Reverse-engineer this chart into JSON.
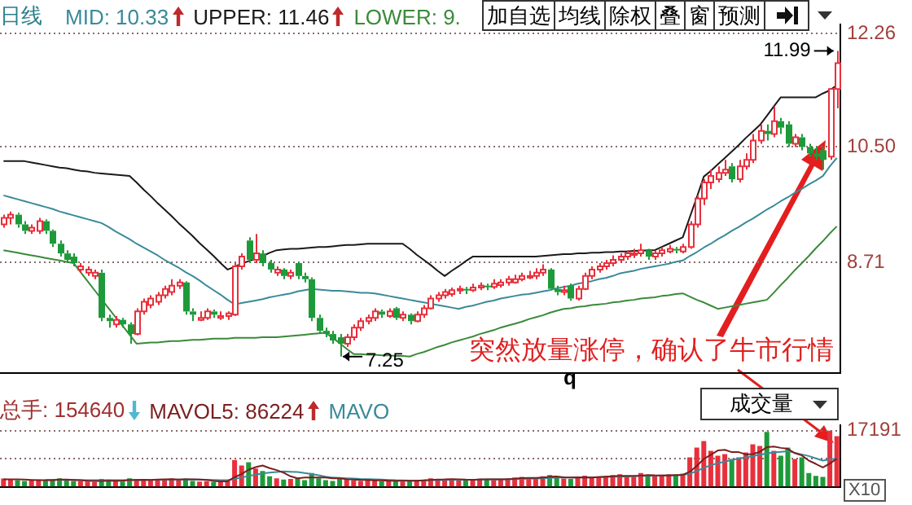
{
  "chart_data": [
    {
      "type": "candlestick",
      "title": "日线",
      "categories": [
        null,
        null,
        null,
        null,
        null,
        null,
        null,
        null,
        null,
        null,
        null,
        null,
        null,
        null,
        null,
        null,
        null,
        null,
        null,
        null,
        null,
        null,
        null,
        null,
        null,
        null,
        null,
        null,
        null,
        null,
        null,
        null,
        null,
        null,
        null,
        null,
        null,
        null,
        null,
        null,
        null,
        null,
        null,
        null,
        null,
        null,
        null,
        null,
        null,
        null,
        null,
        null,
        null,
        null,
        null,
        null,
        null,
        null,
        null,
        null,
        null,
        null,
        null,
        null,
        null,
        null,
        null,
        null,
        null,
        null,
        null,
        null,
        null,
        null,
        null,
        null,
        null,
        null,
        null,
        null,
        null,
        null,
        null,
        null,
        null,
        null,
        null,
        null,
        null,
        null,
        null,
        null,
        null,
        null,
        null,
        null,
        null,
        null,
        null,
        null,
        null,
        null,
        null,
        null,
        null,
        null,
        null,
        null,
        null,
        null,
        null,
        null,
        null,
        null,
        null,
        null,
        null,
        null,
        null,
        null
      ],
      "ohlc": [
        [
          9.3,
          9.45,
          9.25,
          9.4
        ],
        [
          9.4,
          9.5,
          9.3,
          9.45
        ],
        [
          9.45,
          9.48,
          9.25,
          9.3
        ],
        [
          9.3,
          9.35,
          9.15,
          9.2
        ],
        [
          9.2,
          9.3,
          9.15,
          9.25
        ],
        [
          9.2,
          9.4,
          9.15,
          9.35
        ],
        [
          9.35,
          9.38,
          9.15,
          9.2
        ],
        [
          9.2,
          9.22,
          8.95,
          9.0
        ],
        [
          9.0,
          9.05,
          8.8,
          8.85
        ],
        [
          8.85,
          8.9,
          8.7,
          8.75
        ],
        [
          8.8,
          8.85,
          8.65,
          8.7
        ],
        [
          8.6,
          8.7,
          8.55,
          8.65
        ],
        [
          8.55,
          8.65,
          8.5,
          8.6
        ],
        [
          8.5,
          8.6,
          8.45,
          8.55
        ],
        [
          8.55,
          8.6,
          7.8,
          7.85
        ],
        [
          7.85,
          7.9,
          7.7,
          7.8
        ],
        [
          7.75,
          7.88,
          7.7,
          7.82
        ],
        [
          7.82,
          7.85,
          7.7,
          7.75
        ],
        [
          7.75,
          7.78,
          7.45,
          7.6
        ],
        [
          7.6,
          8.0,
          7.58,
          7.95
        ],
        [
          7.95,
          8.15,
          7.9,
          8.1
        ],
        [
          8.05,
          8.2,
          8.0,
          8.15
        ],
        [
          8.1,
          8.25,
          8.05,
          8.2
        ],
        [
          8.2,
          8.35,
          8.15,
          8.3
        ],
        [
          8.25,
          8.45,
          8.2,
          8.35
        ],
        [
          8.35,
          8.45,
          8.3,
          8.4
        ],
        [
          8.4,
          8.42,
          7.9,
          7.95
        ],
        [
          7.95,
          8.0,
          7.8,
          7.9
        ],
        [
          7.82,
          7.95,
          7.8,
          7.85
        ],
        [
          7.85,
          8.0,
          7.82,
          7.95
        ],
        [
          7.95,
          7.98,
          7.85,
          7.9
        ],
        [
          7.85,
          7.95,
          7.82,
          7.88
        ],
        [
          7.88,
          7.95,
          7.82,
          7.92
        ],
        [
          7.9,
          8.7,
          7.88,
          8.65
        ],
        [
          8.65,
          8.85,
          8.6,
          8.8
        ],
        [
          9.05,
          9.1,
          8.7,
          8.75
        ],
        [
          8.75,
          9.15,
          8.7,
          8.85
        ],
        [
          8.85,
          8.9,
          8.65,
          8.7
        ],
        [
          8.7,
          8.75,
          8.55,
          8.6
        ],
        [
          8.55,
          8.65,
          8.5,
          8.6
        ],
        [
          8.6,
          8.62,
          8.45,
          8.5
        ],
        [
          8.5,
          8.6,
          8.45,
          8.55
        ],
        [
          8.7,
          8.72,
          8.45,
          8.5
        ],
        [
          8.5,
          8.55,
          8.4,
          8.45
        ],
        [
          8.45,
          8.48,
          7.8,
          7.85
        ],
        [
          7.85,
          7.9,
          7.6,
          7.65
        ],
        [
          7.65,
          7.7,
          7.55,
          7.6
        ],
        [
          7.6,
          7.65,
          7.45,
          7.5
        ],
        [
          7.55,
          7.6,
          7.25,
          7.45
        ],
        [
          7.45,
          7.6,
          7.4,
          7.55
        ],
        [
          7.55,
          7.75,
          7.5,
          7.7
        ],
        [
          7.7,
          7.85,
          7.65,
          7.8
        ],
        [
          7.8,
          7.9,
          7.75,
          7.85
        ],
        [
          7.85,
          8.0,
          7.8,
          7.95
        ],
        [
          7.95,
          7.98,
          7.85,
          7.9
        ],
        [
          7.88,
          8.0,
          7.85,
          7.95
        ],
        [
          8.0,
          8.02,
          7.82,
          7.85
        ],
        [
          7.85,
          7.95,
          7.8,
          7.9
        ],
        [
          7.9,
          7.92,
          7.75,
          7.8
        ],
        [
          7.8,
          7.95,
          7.78,
          7.9
        ],
        [
          7.9,
          8.05,
          7.85,
          8.0
        ],
        [
          8.0,
          8.2,
          7.98,
          8.15
        ],
        [
          8.15,
          8.25,
          8.1,
          8.2
        ],
        [
          8.2,
          8.3,
          8.15,
          8.25
        ],
        [
          8.22,
          8.32,
          8.18,
          8.28
        ],
        [
          8.28,
          8.35,
          8.22,
          8.3
        ],
        [
          8.3,
          8.33,
          8.22,
          8.28
        ],
        [
          8.28,
          8.38,
          8.25,
          8.32
        ],
        [
          8.32,
          8.4,
          8.28,
          8.35
        ],
        [
          8.35,
          8.38,
          8.28,
          8.33
        ],
        [
          8.33,
          8.45,
          8.3,
          8.38
        ],
        [
          8.36,
          8.45,
          8.32,
          8.4
        ],
        [
          8.4,
          8.5,
          8.35,
          8.45
        ],
        [
          8.4,
          8.52,
          8.38,
          8.45
        ],
        [
          8.45,
          8.55,
          8.42,
          8.5
        ],
        [
          8.48,
          8.58,
          8.45,
          8.5
        ],
        [
          8.5,
          8.62,
          8.45,
          8.55
        ],
        [
          8.55,
          8.68,
          8.5,
          8.6
        ],
        [
          8.6,
          8.62,
          8.28,
          8.3
        ],
        [
          8.3,
          8.35,
          8.2,
          8.25
        ],
        [
          8.25,
          8.35,
          8.2,
          8.28
        ],
        [
          8.35,
          8.38,
          8.12,
          8.15
        ],
        [
          8.15,
          8.35,
          8.12,
          8.3
        ],
        [
          8.3,
          8.55,
          8.28,
          8.5
        ],
        [
          8.5,
          8.65,
          8.45,
          8.6
        ],
        [
          8.6,
          8.7,
          8.55,
          8.65
        ],
        [
          8.65,
          8.75,
          8.6,
          8.7
        ],
        [
          8.7,
          8.82,
          8.65,
          8.75
        ],
        [
          8.75,
          8.85,
          8.7,
          8.8
        ],
        [
          8.8,
          8.9,
          8.75,
          8.85
        ],
        [
          8.83,
          8.92,
          8.78,
          8.85
        ],
        [
          8.85,
          9.0,
          8.8,
          8.9
        ],
        [
          8.9,
          8.92,
          8.75,
          8.8
        ],
        [
          8.8,
          8.9,
          8.75,
          8.85
        ],
        [
          8.85,
          8.95,
          8.8,
          8.9
        ],
        [
          8.88,
          8.98,
          8.85,
          8.92
        ],
        [
          8.92,
          8.95,
          8.85,
          8.9
        ],
        [
          8.88,
          9.0,
          8.85,
          8.95
        ],
        [
          8.95,
          9.35,
          8.92,
          9.3
        ],
        [
          9.3,
          9.75,
          9.25,
          9.7
        ],
        [
          9.7,
          10.0,
          9.6,
          9.95
        ],
        [
          9.95,
          10.15,
          9.85,
          10.05
        ],
        [
          10.0,
          10.2,
          9.95,
          10.1
        ],
        [
          10.1,
          10.3,
          10.05,
          10.15
        ],
        [
          10.2,
          10.25,
          9.95,
          10.0
        ],
        [
          10.0,
          10.3,
          9.95,
          10.2
        ],
        [
          10.2,
          10.4,
          10.15,
          10.3
        ],
        [
          10.3,
          10.7,
          10.25,
          10.6
        ],
        [
          10.6,
          10.85,
          10.55,
          10.75
        ],
        [
          10.75,
          10.85,
          10.6,
          10.7
        ],
        [
          10.7,
          11.13,
          10.65,
          10.9
        ],
        [
          10.9,
          10.95,
          10.7,
          10.8
        ],
        [
          10.85,
          10.9,
          10.5,
          10.55
        ],
        [
          10.55,
          10.7,
          10.5,
          10.65
        ],
        [
          10.65,
          10.7,
          10.45,
          10.5
        ],
        [
          10.5,
          10.55,
          10.35,
          10.4
        ],
        [
          10.4,
          10.5,
          10.3,
          10.35
        ],
        [
          10.45,
          10.5,
          10.15,
          10.3
        ],
        [
          10.35,
          11.4,
          10.3,
          11.4
        ],
        [
          11.4,
          11.99,
          11.1,
          11.8
        ]
      ],
      "series": [
        {
          "type": "line",
          "color": "#3a8a9a",
          "values": [
            9.75,
            9.72,
            9.69,
            9.66,
            9.63,
            9.6,
            9.57,
            9.54,
            9.5,
            9.47,
            9.44,
            9.41,
            9.38,
            9.35,
            9.32,
            9.26,
            9.19,
            9.13,
            9.07,
            9.0,
            8.94,
            8.88,
            8.82,
            8.75,
            8.69,
            8.63,
            8.56,
            8.5,
            8.43,
            8.35,
            8.28,
            8.21,
            8.13,
            8.06,
            8.08,
            8.1,
            8.12,
            8.14,
            8.17,
            8.19,
            8.21,
            8.23,
            8.26,
            8.28,
            8.3,
            8.29,
            8.28,
            8.27,
            8.27,
            8.26,
            8.25,
            8.24,
            8.24,
            8.23,
            8.21,
            8.19,
            8.17,
            8.15,
            8.13,
            8.11,
            8.09,
            8.07,
            8.05,
            8.03,
            8.01,
            7.99,
            8.02,
            8.04,
            8.07,
            8.1,
            8.12,
            8.15,
            8.17,
            8.19,
            8.21,
            8.22,
            8.24,
            8.26,
            8.28,
            8.31,
            8.33,
            8.35,
            8.38,
            8.4,
            8.42,
            8.45,
            8.47,
            8.5,
            8.54,
            8.56,
            8.58,
            8.61,
            8.63,
            8.65,
            8.67,
            8.69,
            8.72,
            8.74,
            8.81,
            8.87,
            8.94,
            9.0,
            9.07,
            9.13,
            9.2,
            9.26,
            9.33,
            9.39,
            9.46,
            9.53,
            9.59,
            9.66,
            9.72,
            9.79,
            9.85,
            9.92,
            9.98,
            10.05,
            10.2,
            10.33
          ]
        },
        {
          "type": "line",
          "color": "#1a1a1a",
          "values": [
            10.28,
            10.28,
            10.28,
            10.28,
            10.26,
            10.24,
            10.22,
            10.2,
            10.18,
            10.17,
            10.15,
            10.13,
            10.12,
            10.1,
            10.09,
            10.08,
            10.07,
            10.06,
            10.05,
            9.95,
            9.84,
            9.74,
            9.63,
            9.53,
            9.43,
            9.32,
            9.22,
            9.12,
            9.01,
            8.91,
            8.81,
            8.7,
            8.6,
            8.64,
            8.69,
            8.73,
            8.77,
            8.81,
            8.86,
            8.9,
            8.91,
            8.92,
            8.92,
            8.93,
            8.94,
            8.95,
            8.95,
            8.96,
            8.97,
            8.98,
            8.98,
            8.99,
            9.0,
            9.0,
            9.0,
            9.0,
            9.0,
            9.0,
            8.92,
            8.83,
            8.75,
            8.67,
            8.58,
            8.5,
            8.58,
            8.65,
            8.73,
            8.8,
            8.8,
            8.8,
            8.8,
            8.8,
            8.8,
            8.8,
            8.8,
            8.8,
            8.8,
            8.81,
            8.82,
            8.83,
            8.84,
            8.84,
            8.85,
            8.85,
            8.86,
            8.86,
            8.87,
            8.87,
            8.88,
            8.88,
            8.89,
            8.89,
            8.9,
            8.9,
            8.95,
            9.0,
            9.05,
            9.1,
            9.41,
            9.72,
            10.04,
            10.13,
            10.23,
            10.33,
            10.43,
            10.53,
            10.64,
            10.74,
            10.84,
            10.98,
            11.13,
            11.27,
            11.27,
            11.27,
            11.27,
            11.27,
            11.27,
            11.33,
            11.38,
            11.46
          ]
        },
        {
          "type": "line",
          "color": "#3a8a3a",
          "values": [
            8.9,
            8.88,
            8.86,
            8.84,
            8.82,
            8.8,
            8.78,
            8.76,
            8.74,
            8.72,
            8.7,
            8.56,
            8.42,
            8.28,
            8.14,
            8.0,
            7.86,
            7.73,
            7.59,
            7.45,
            7.46,
            7.47,
            7.47,
            7.48,
            7.49,
            7.49,
            7.5,
            7.51,
            7.51,
            7.52,
            7.53,
            7.53,
            7.53,
            7.54,
            7.54,
            7.54,
            7.54,
            7.55,
            7.55,
            7.55,
            7.56,
            7.57,
            7.58,
            7.59,
            7.6,
            7.61,
            7.62,
            7.54,
            7.46,
            7.37,
            7.29,
            7.29,
            7.28,
            7.28,
            7.27,
            7.27,
            7.26,
            7.26,
            7.25,
            7.29,
            7.32,
            7.36,
            7.4,
            7.43,
            7.47,
            7.5,
            7.53,
            7.56,
            7.6,
            7.63,
            7.66,
            7.7,
            7.73,
            7.76,
            7.79,
            7.83,
            7.86,
            7.89,
            7.93,
            7.96,
            7.99,
            8.0,
            8.02,
            8.03,
            8.05,
            8.06,
            8.07,
            8.09,
            8.1,
            8.12,
            8.13,
            8.15,
            8.16,
            8.17,
            8.19,
            8.2,
            8.22,
            8.23,
            8.18,
            8.13,
            8.09,
            8.04,
            7.99,
            8.01,
            8.03,
            8.05,
            8.07,
            8.09,
            8.11,
            8.13,
            8.24,
            8.36,
            8.47,
            8.59,
            8.7,
            8.81,
            8.93,
            9.04,
            9.16,
            9.27
          ]
        }
      ],
      "ylim": [
        7.0,
        12.4
      ],
      "yticks": [
        8.71,
        {
          "value": 10.5,
          "label": "10.50"
        },
        12.26
      ],
      "grid": "y",
      "tick_labels": "y",
      "annotations": [
        "MID: 10.33",
        "UPPER: 11.46",
        "LOWER: 9.",
        "加自选",
        "均线",
        "除权",
        "叠",
        "窗",
        "预测",
        "突然放量涨停，确认了牛市行情",
        "q",
        "11.99",
        "7.25"
      ]
    },
    {
      "type": "bar",
      "categories": [
        null,
        null,
        null,
        null,
        null,
        null,
        null,
        null,
        null,
        null,
        null,
        null,
        null,
        null,
        null,
        null,
        null,
        null,
        null,
        null,
        null,
        null,
        null,
        null,
        null,
        null,
        null,
        null,
        null,
        null,
        null,
        null,
        null,
        null,
        null,
        null,
        null,
        null,
        null,
        null,
        null,
        null,
        null,
        null,
        null,
        null,
        null,
        null,
        null,
        null,
        null,
        null,
        null,
        null,
        null,
        null,
        null,
        null,
        null,
        null,
        null,
        null,
        null,
        null,
        null,
        null,
        null,
        null,
        null,
        null,
        null,
        null,
        null,
        null,
        null,
        null,
        null,
        null,
        null,
        null,
        null,
        null,
        null,
        null,
        null,
        null,
        null,
        null,
        null,
        null,
        null,
        null,
        null,
        null,
        null,
        null,
        null,
        null,
        null,
        null,
        null,
        null,
        null,
        null,
        null,
        null,
        null,
        null,
        null,
        null,
        null,
        null,
        null,
        null,
        null,
        null,
        null,
        null,
        null,
        null
      ],
      "series": [
        {
          "type": "bar",
          "values": [
            2500,
            2200,
            2000,
            1800,
            2000,
            2200,
            1900,
            2300,
            2600,
            2100,
            1800,
            1700,
            1600,
            1500,
            2400,
            2200,
            1800,
            1600,
            2600,
            2400,
            2100,
            2000,
            1900,
            2200,
            2600,
            2000,
            2500,
            1800,
            1600,
            1700,
            1500,
            1600,
            1800,
            8200,
            6500,
            7500,
            5600,
            4800,
            3200,
            2600,
            2200,
            2400,
            2800,
            2000,
            4200,
            2600,
            2000,
            1800,
            2600,
            2200,
            2000,
            1800,
            1900,
            2100,
            1700,
            1800,
            2000,
            1600,
            1700,
            1900,
            2200,
            2600,
            2400,
            2200,
            2300,
            2100,
            2000,
            2200,
            2500,
            2300,
            2000,
            2400,
            2600,
            2800,
            3000,
            2600,
            2400,
            3200,
            3600,
            2800,
            2500,
            2400,
            2800,
            3400,
            3000,
            2800,
            3200,
            3600,
            3800,
            3400,
            3000,
            4200,
            3600,
            3200,
            3400,
            3800,
            3600,
            4000,
            9000,
            12000,
            14000,
            11000,
            9500,
            10000,
            8500,
            9000,
            10500,
            13000,
            12500,
            16800,
            11000,
            9500,
            12000,
            8500,
            9000,
            4200,
            3300,
            3000,
            17191,
            15464
          ],
          "colors": [
            "#e8303c",
            "#e8303c",
            "#1e9a3a",
            "#1e9a3a",
            "#e8303c",
            "#e8303c",
            "#1e9a3a",
            "#1e9a3a",
            "#1e9a3a",
            "#1e9a3a",
            "#1e9a3a",
            "#e8303c",
            "#e8303c",
            "#e8303c",
            "#1e9a3a",
            "#1e9a3a",
            "#e8303c",
            "#1e9a3a",
            "#1e9a3a",
            "#e8303c",
            "#e8303c",
            "#e8303c",
            "#e8303c",
            "#e8303c",
            "#e8303c",
            "#e8303c",
            "#1e9a3a",
            "#1e9a3a",
            "#e8303c",
            "#e8303c",
            "#1e9a3a",
            "#e8303c",
            "#e8303c",
            "#e8303c",
            "#e8303c",
            "#1e9a3a",
            "#e8303c",
            "#1e9a3a",
            "#1e9a3a",
            "#e8303c",
            "#1e9a3a",
            "#e8303c",
            "#1e9a3a",
            "#1e9a3a",
            "#1e9a3a",
            "#1e9a3a",
            "#1e9a3a",
            "#1e9a3a",
            "#1e9a3a",
            "#e8303c",
            "#e8303c",
            "#e8303c",
            "#e8303c",
            "#e8303c",
            "#1e9a3a",
            "#e8303c",
            "#1e9a3a",
            "#e8303c",
            "#1e9a3a",
            "#e8303c",
            "#e8303c",
            "#e8303c",
            "#e8303c",
            "#e8303c",
            "#e8303c",
            "#e8303c",
            "#1e9a3a",
            "#e8303c",
            "#e8303c",
            "#1e9a3a",
            "#e8303c",
            "#e8303c",
            "#e8303c",
            "#e8303c",
            "#e8303c",
            "#e8303c",
            "#e8303c",
            "#e8303c",
            "#1e9a3a",
            "#1e9a3a",
            "#e8303c",
            "#1e9a3a",
            "#e8303c",
            "#e8303c",
            "#e8303c",
            "#e8303c",
            "#e8303c",
            "#e8303c",
            "#e8303c",
            "#e8303c",
            "#e8303c",
            "#e8303c",
            "#1e9a3a",
            "#e8303c",
            "#e8303c",
            "#e8303c",
            "#1e9a3a",
            "#e8303c",
            "#e8303c",
            "#e8303c",
            "#e8303c",
            "#e8303c",
            "#e8303c",
            "#e8303c",
            "#1e9a3a",
            "#e8303c",
            "#e8303c",
            "#e8303c",
            "#e8303c",
            "#1e9a3a",
            "#e8303c",
            "#1e9a3a",
            "#1e9a3a",
            "#e8303c",
            "#1e9a3a",
            "#1e9a3a",
            "#1e9a3a",
            "#1e9a3a",
            "#e8303c",
            "#e8303c"
          ]
        },
        {
          "type": "line",
          "color": "#7a1f1f",
          "values": [
            2300,
            2300,
            2250,
            2200,
            2100,
            2000,
            2000,
            2050,
            2200,
            2200,
            2100,
            2000,
            1850,
            1750,
            1800,
            1850,
            1850,
            1850,
            2100,
            2100,
            2150,
            2100,
            2200,
            2250,
            2250,
            2200,
            2300,
            2300,
            2200,
            2100,
            1800,
            1650,
            1650,
            2900,
            3900,
            5200,
            6000,
            6500,
            5700,
            5100,
            4300,
            3200,
            2600,
            2800,
            2800,
            2800,
            2800,
            2600,
            2600,
            2300,
            2200,
            2100,
            2100,
            1950,
            1950,
            1850,
            1850,
            1850,
            1850,
            1850,
            1950,
            2100,
            2200,
            2250,
            2350,
            2300,
            2200,
            2150,
            2200,
            2300,
            2250,
            2250,
            2300,
            2450,
            2650,
            2700,
            2700,
            2800,
            3100,
            3150,
            2900,
            2850,
            2900,
            2800,
            2800,
            2950,
            3100,
            3200,
            3300,
            3300,
            3300,
            3400,
            3600,
            3500,
            3450,
            3450,
            3550,
            3650,
            4600,
            6400,
            8500,
            9800,
            11100,
            11300,
            10600,
            10600,
            9900,
            10000,
            10700,
            12100,
            12300,
            11900,
            11600,
            10300,
            9600,
            8000,
            7000,
            5900,
            7100,
            8600
          ]
        },
        {
          "type": "line",
          "color": "#3a8a9a",
          "values": [
            null,
            null,
            null,
            null,
            null,
            null,
            2100,
            2100,
            2100,
            2100,
            2100,
            2050,
            2050,
            2000,
            2000,
            2000,
            2000,
            2000,
            2000,
            2050,
            2100,
            2100,
            2150,
            2150,
            2200,
            2200,
            2200,
            2200,
            2200,
            2150,
            2100,
            2050,
            2000,
            2400,
            2800,
            3300,
            3700,
            4100,
            4300,
            4500,
            4700,
            4600,
            4500,
            4200,
            3900,
            3500,
            3100,
            2800,
            2700,
            2600,
            2500,
            2400,
            2350,
            2300,
            2200,
            2100,
            2000,
            1950,
            1900,
            1900,
            1900,
            2000,
            2050,
            2100,
            2150,
            2150,
            2150,
            2150,
            2200,
            2250,
            2250,
            2250,
            2250,
            2300,
            2400,
            2450,
            2500,
            2600,
            2700,
            2800,
            2850,
            2850,
            2850,
            2850,
            2900,
            2950,
            3000,
            3050,
            3100,
            3150,
            3200,
            3300,
            3350,
            3400,
            3450,
            3450,
            3500,
            3550,
            4000,
            4800,
            5800,
            6600,
            7200,
            7700,
            8200,
            8600,
            9000,
            9400,
            9800,
            10200,
            10500,
            10700,
            10900,
            10400,
            9900,
            9400,
            8700,
            8000,
            8400,
            8600
          ]
        }
      ],
      "ylim": [
        0,
        18750
      ],
      "yticks": [
        {
          "value": 8596,
          "label": null
        },
        17191
      ],
      "grid": "y",
      "tick_labels": "y",
      "annotations": [
        "总手: 154640",
        "MAVOL5: 86224",
        "MAVO",
        "成交量",
        "X10"
      ]
    }
  ]
}
